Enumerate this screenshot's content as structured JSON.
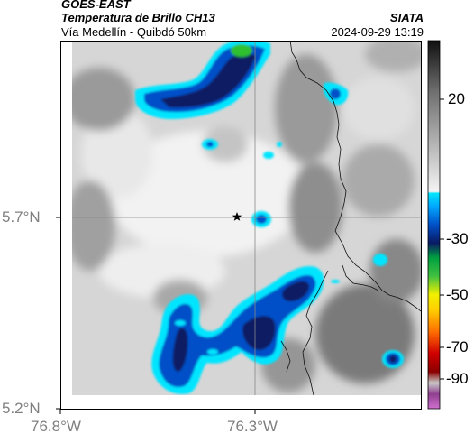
{
  "header": {
    "source": "GOES-EAST",
    "product": "Temperatura de Brillo CH13",
    "route": "Vía Medellín - Quibdó 50km",
    "org": "SIATA",
    "datetime": "2024-09-29 13:19"
  },
  "axes": {
    "x_ticks": [
      "76.8°W",
      "76.3°W"
    ],
    "y_ticks": [
      "5.7°N",
      "5.2°N"
    ]
  },
  "colorbar": {
    "ticks": [
      "20",
      "-30",
      "-50",
      "-70",
      "-90"
    ],
    "colors": {
      "dark_gray": "#1e1e1e",
      "mid_gray": "#8a8a8a",
      "light_gray": "#e6e6e6",
      "cyan": "#00e5ff",
      "blue": "#0050c8",
      "navy": "#0a1a64",
      "green": "#2ec02e",
      "yellow": "#f0f000",
      "orange": "#ff8000",
      "red": "#d00000",
      "dark_red": "#400000",
      "magenta": "#c060c0"
    }
  },
  "marker": {
    "icon": "star-icon"
  }
}
